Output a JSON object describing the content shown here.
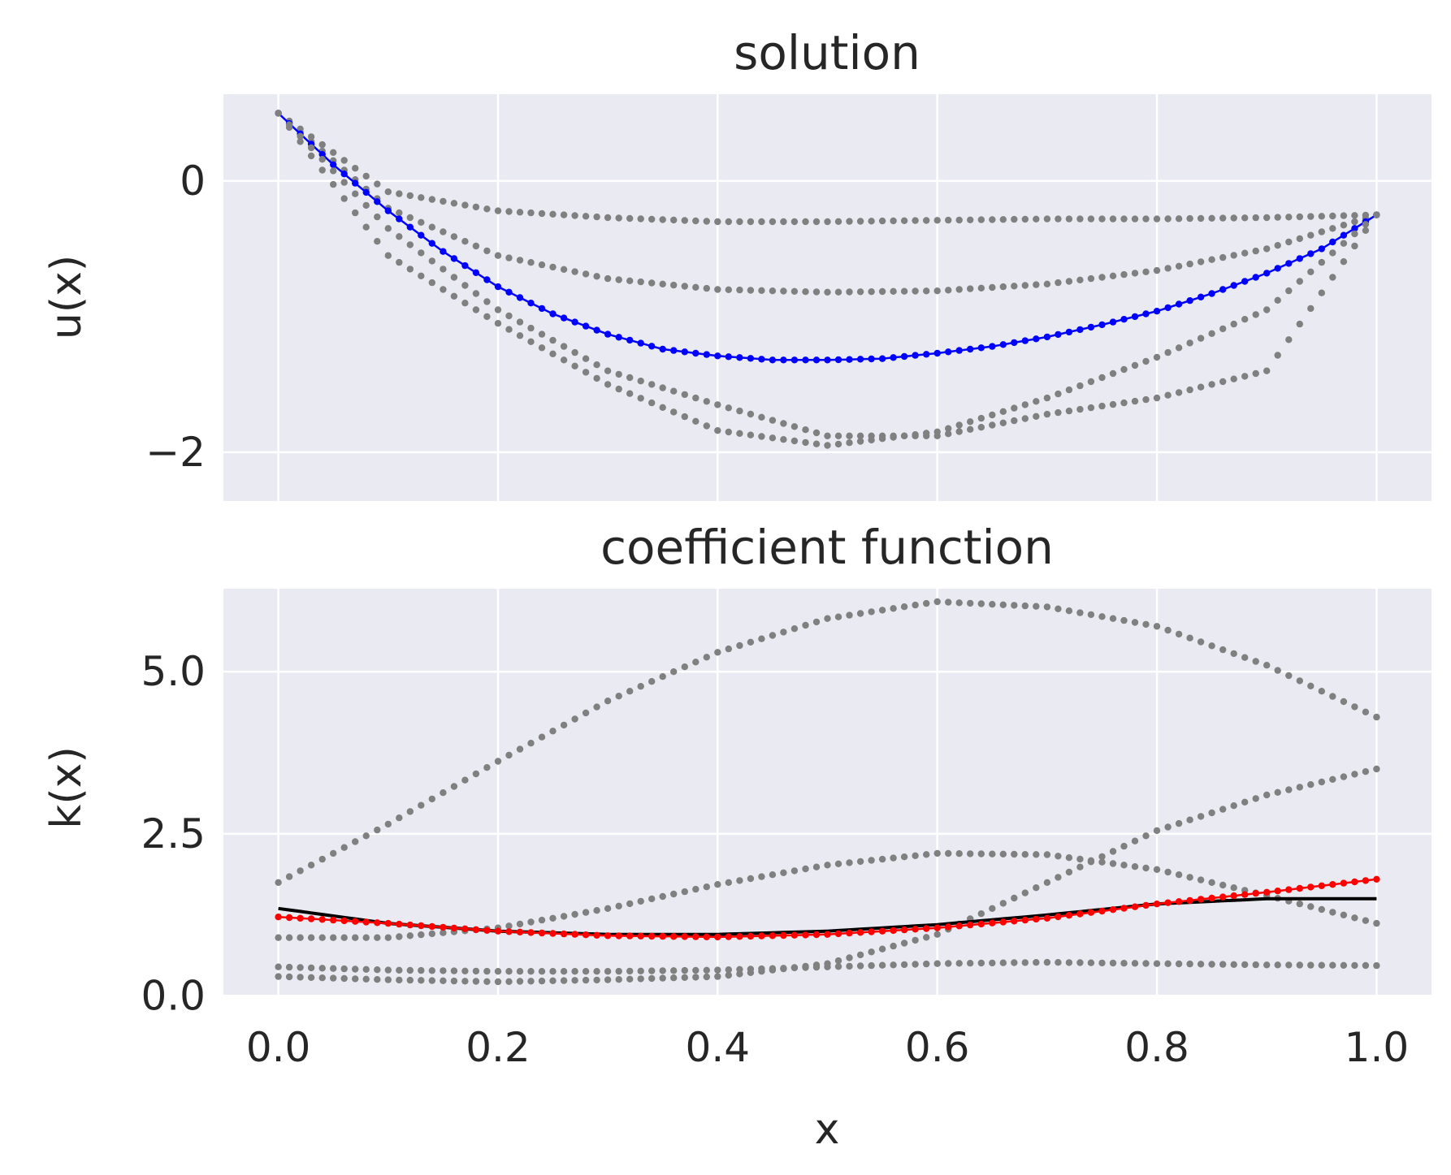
{
  "colors": {
    "background": "#eaeaf2",
    "grid": "#ffffff",
    "sample": "#808080",
    "solution_highlight": "#0000ff",
    "coefficient_highlight": "#ff0000",
    "coefficient_true": "#000000"
  },
  "chart_data": [
    {
      "type": "scatter",
      "title": "solution",
      "xlabel": "",
      "ylabel": "u(x)",
      "xlim": [
        -0.05,
        1.05
      ],
      "ylim": [
        -2.36,
        0.64
      ],
      "xticks": [
        0.0,
        0.2,
        0.4,
        0.6,
        0.8,
        1.0
      ],
      "xtick_labels": [
        "",
        "",
        "",
        "",
        "",
        ""
      ],
      "yticks": [
        0,
        -2
      ],
      "ytick_labels": [
        "0",
        "−2"
      ],
      "grid": true,
      "series": [
        {
          "role": "sample",
          "color": "#808080",
          "x": [
            0,
            0.1,
            0.2,
            0.3,
            0.4,
            0.5,
            0.6,
            0.7,
            0.8,
            0.9,
            1.0
          ],
          "y": [
            0.5,
            -0.08,
            -0.22,
            -0.27,
            -0.3,
            -0.3,
            -0.29,
            -0.28,
            -0.28,
            -0.27,
            -0.25
          ]
        },
        {
          "role": "sample",
          "color": "#808080",
          "x": [
            0,
            0.1,
            0.2,
            0.3,
            0.4,
            0.5,
            0.6,
            0.7,
            0.8,
            0.9,
            1.0
          ],
          "y": [
            0.5,
            -0.2,
            -0.55,
            -0.72,
            -0.8,
            -0.82,
            -0.81,
            -0.76,
            -0.66,
            -0.5,
            -0.25
          ]
        },
        {
          "role": "highlight",
          "color": "#0000ff",
          "x": [
            0,
            0.05,
            0.1,
            0.15,
            0.2,
            0.25,
            0.3,
            0.35,
            0.4,
            0.45,
            0.5,
            0.55,
            0.6,
            0.65,
            0.7,
            0.75,
            0.8,
            0.85,
            0.9,
            0.95,
            1.0
          ],
          "y": [
            0.5,
            0.12,
            -0.22,
            -0.52,
            -0.78,
            -0.98,
            -1.13,
            -1.24,
            -1.29,
            -1.32,
            -1.32,
            -1.31,
            -1.27,
            -1.22,
            -1.15,
            -1.06,
            -0.96,
            -0.83,
            -0.68,
            -0.5,
            -0.25
          ]
        },
        {
          "role": "sample",
          "color": "#808080",
          "x": [
            0,
            0.1,
            0.2,
            0.3,
            0.4,
            0.5,
            0.6,
            0.7,
            0.8,
            0.9,
            1.0
          ],
          "y": [
            0.5,
            -0.35,
            -0.95,
            -1.4,
            -1.65,
            -1.88,
            -1.88,
            -1.72,
            -1.6,
            -1.4,
            -0.25
          ]
        },
        {
          "role": "sample",
          "color": "#808080",
          "x": [
            0,
            0.1,
            0.2,
            0.3,
            0.4,
            0.5,
            0.6,
            0.7,
            0.8,
            0.9,
            1.0
          ],
          "y": [
            0.5,
            -0.55,
            -1.05,
            -1.5,
            -1.84,
            -1.95,
            -1.85,
            -1.6,
            -1.3,
            -0.95,
            -0.25
          ]
        }
      ]
    },
    {
      "type": "scatter",
      "title": "coefficient function",
      "xlabel": "x",
      "ylabel": "k(x)",
      "xlim": [
        -0.05,
        1.05
      ],
      "ylim": [
        0.02,
        6.28
      ],
      "xticks": [
        0.0,
        0.2,
        0.4,
        0.6,
        0.8,
        1.0
      ],
      "xtick_labels": [
        "0.0",
        "0.2",
        "0.4",
        "0.6",
        "0.8",
        "1.0"
      ],
      "yticks": [
        0.0,
        2.5,
        5.0
      ],
      "ytick_labels": [
        "0.0",
        "2.5",
        "5.0"
      ],
      "grid": true,
      "series": [
        {
          "role": "sample",
          "color": "#808080",
          "x": [
            0,
            0.1,
            0.2,
            0.3,
            0.4,
            0.5,
            0.6,
            0.7,
            0.8,
            0.9,
            1.0
          ],
          "y": [
            1.75,
            2.65,
            3.62,
            4.55,
            5.3,
            5.82,
            6.08,
            6.0,
            5.7,
            5.1,
            4.3
          ]
        },
        {
          "role": "sample",
          "color": "#808080",
          "x": [
            0,
            0.1,
            0.2,
            0.3,
            0.4,
            0.5,
            0.6,
            0.7,
            0.8,
            0.9,
            1.0
          ],
          "y": [
            0.9,
            0.9,
            1.05,
            1.35,
            1.72,
            2.02,
            2.2,
            2.18,
            1.95,
            1.55,
            1.12
          ]
        },
        {
          "role": "sample",
          "color": "#808080",
          "x": [
            0,
            0.1,
            0.2,
            0.3,
            0.4,
            0.5,
            0.6,
            0.7,
            0.8,
            0.9,
            1.0
          ],
          "y": [
            0.45,
            0.4,
            0.38,
            0.38,
            0.4,
            0.45,
            0.5,
            0.52,
            0.5,
            0.48,
            0.47
          ]
        },
        {
          "role": "sample",
          "color": "#808080",
          "x": [
            0,
            0.1,
            0.2,
            0.3,
            0.4,
            0.5,
            0.6,
            0.7,
            0.8,
            0.9,
            1.0
          ],
          "y": [
            0.3,
            0.25,
            0.22,
            0.25,
            0.3,
            0.5,
            0.95,
            1.75,
            2.55,
            3.1,
            3.5
          ]
        },
        {
          "role": "true",
          "color": "#000000",
          "style": "line",
          "x": [
            0,
            0.1,
            0.2,
            0.3,
            0.4,
            0.5,
            0.6,
            0.7,
            0.8,
            0.9,
            1.0
          ],
          "y": [
            1.35,
            1.12,
            1.0,
            0.95,
            0.95,
            1.0,
            1.1,
            1.25,
            1.42,
            1.5,
            1.5
          ]
        },
        {
          "role": "highlight",
          "color": "#ff0000",
          "x": [
            0,
            0.1,
            0.2,
            0.3,
            0.4,
            0.5,
            0.6,
            0.7,
            0.8,
            0.9,
            1.0
          ],
          "y": [
            1.22,
            1.12,
            1.0,
            0.93,
            0.91,
            0.95,
            1.05,
            1.2,
            1.42,
            1.6,
            1.8
          ]
        }
      ]
    }
  ]
}
